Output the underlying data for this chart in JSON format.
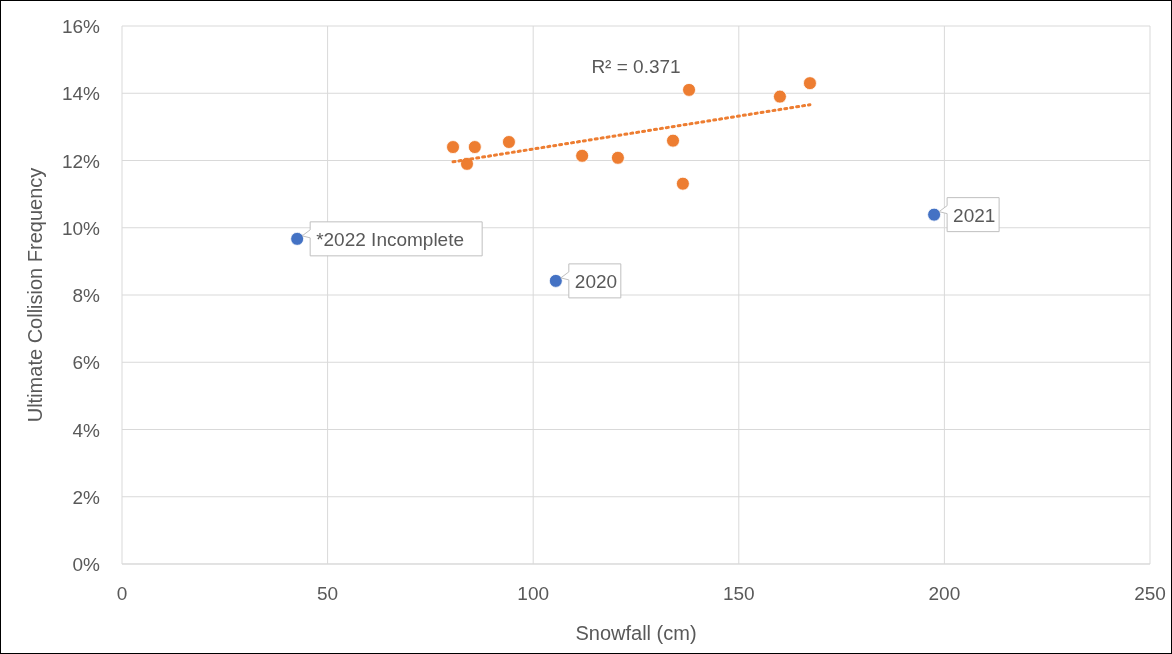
{
  "chart_data": {
    "type": "scatter",
    "xlabel": "Snowfall (cm)",
    "ylabel": "Ultimate Collision Frequency",
    "xlim": [
      0,
      250
    ],
    "xticks": [
      0,
      50,
      100,
      150,
      200,
      250
    ],
    "ylim": [
      0,
      16
    ],
    "yticks": [
      {
        "value": 0,
        "label": "0%"
      },
      {
        "value": 2,
        "label": "2%"
      },
      {
        "value": 4,
        "label": "4%"
      },
      {
        "value": 6,
        "label": "6%"
      },
      {
        "value": 8,
        "label": "8%"
      },
      {
        "value": 10,
        "label": "10%"
      },
      {
        "value": 12,
        "label": "12%"
      },
      {
        "value": 14,
        "label": "14%"
      },
      {
        "value": 16,
        "label": "16%"
      }
    ],
    "grid": true,
    "marker": "circle",
    "series": [
      {
        "color": "#ed7d31",
        "x": [
          80.5,
          83.9,
          85.8,
          94.1,
          111.9,
          120.6,
          134.0,
          136.4,
          137.9,
          160.0,
          167.3
        ],
        "values": [
          12.4,
          11.9,
          12.4,
          12.55,
          12.14,
          12.08,
          12.59,
          11.31,
          14.1,
          13.9,
          14.3
        ]
      },
      {
        "color": "#4472c4",
        "x": [
          42.6,
          105.5,
          197.5
        ],
        "values": [
          9.67,
          8.42,
          10.39
        ]
      },
      {
        "type": "line",
        "color": "#ed7d31",
        "line_style": "dotted",
        "marker": "none",
        "x": [
          80.5,
          167.3
        ],
        "values": [
          11.96,
          13.66
        ]
      }
    ],
    "annotations": [
      {
        "text": "*2022 Incomplete",
        "x": 42.6,
        "y": 9.67
      },
      {
        "text": "2020",
        "x": 105.5,
        "y": 8.42
      },
      {
        "text": "2021",
        "x": 197.5,
        "y": 10.39
      },
      "R² = 0.371"
    ]
  }
}
